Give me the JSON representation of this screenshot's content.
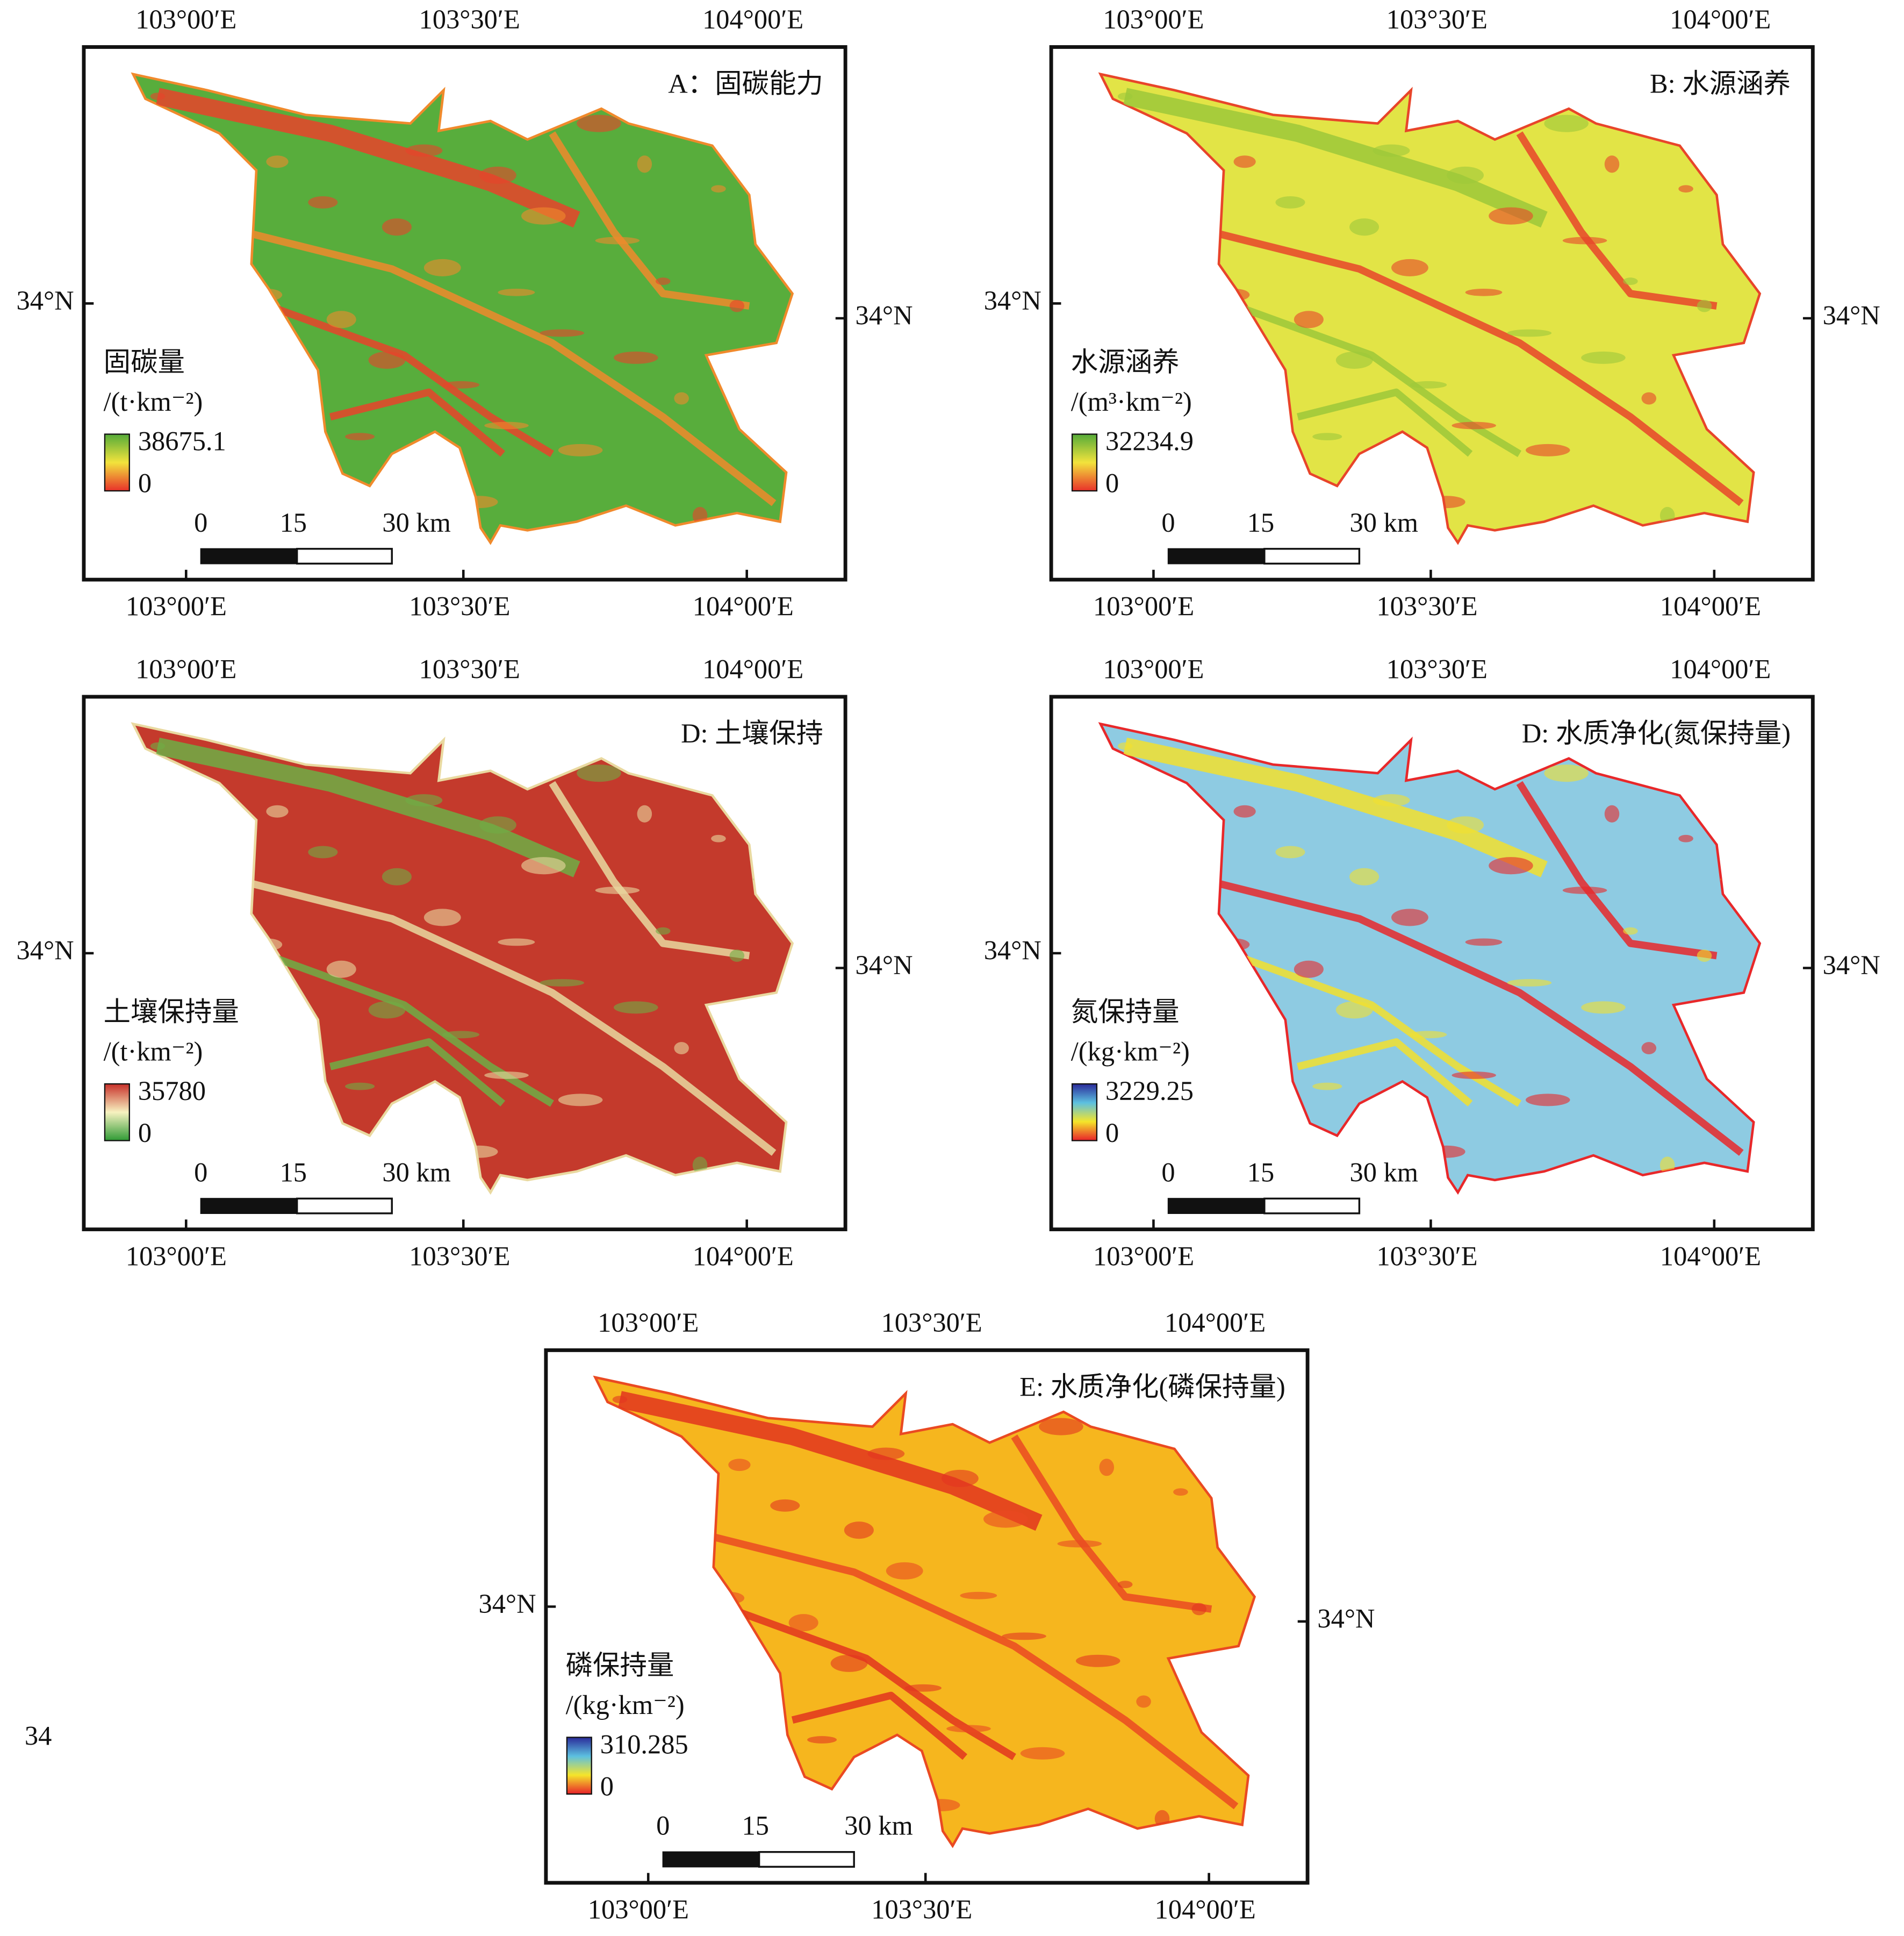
{
  "stray_label": "34",
  "panels": [
    {
      "title": "A：固碳能力",
      "legend_title": "固碳量",
      "legend_unit": "/(t·km⁻²)",
      "legend_max": 38675.1,
      "legend_min": 0,
      "lon_labels": [
        "103°00′E",
        "103°30′E",
        "104°00′E"
      ],
      "lat_label": "34°N",
      "scale_labels": [
        "0",
        "15",
        "30 km"
      ],
      "colors": [
        "#e8312a",
        "#f2e33c",
        "#55ab3a"
      ],
      "base": "#58ad3c",
      "accent": [
        "#e8432a",
        "#f08a2c"
      ]
    },
    {
      "title": "B: 水源涵养",
      "legend_title": "水源涵养",
      "legend_unit": "/(m³·km⁻²)",
      "legend_max": 32234.9,
      "legend_min": 0,
      "lon_labels": [
        "103°00′E",
        "103°30′E",
        "104°00′E"
      ],
      "lat_label": "34°N",
      "scale_labels": [
        "0",
        "15",
        "30 km"
      ],
      "colors": [
        "#e8312a",
        "#f2e33c",
        "#55ab3a"
      ],
      "base": "#e2e446",
      "accent": [
        "#9cc83a",
        "#e8452a"
      ]
    },
    {
      "title": "D: 土壤保持",
      "legend_title": "土壤保持量",
      "legend_unit": "/(t·km⁻²)",
      "legend_max": 35780,
      "legend_min": 0,
      "lon_labels": [
        "103°00′E",
        "103°30′E",
        "104°00′E"
      ],
      "lat_label": "34°N",
      "scale_labels": [
        "0",
        "15",
        "30 km"
      ],
      "colors": [
        "#2f9a35",
        "#f7f2c0",
        "#c8302a"
      ],
      "base": "#c43a2c",
      "accent": [
        "#6fae45",
        "#e9d9a0"
      ]
    },
    {
      "title": "D: 水质净化(氮保持量)",
      "legend_title": "氮保持量",
      "legend_unit": "/(kg·km⁻²)",
      "legend_max": 3229.25,
      "legend_min": 0,
      "lon_labels": [
        "103°00′E",
        "103°30′E",
        "104°00′E"
      ],
      "lat_label": "34°N",
      "scale_labels": [
        "0",
        "15",
        "30 km"
      ],
      "colors": [
        "#e8212a",
        "#f5e52a",
        "#5cc0e0",
        "#2a2a9a"
      ],
      "base": "#8ecbe2",
      "accent": [
        "#f2e12e",
        "#e8282a"
      ]
    },
    {
      "title": "E: 水质净化(磷保持量)",
      "legend_title": "磷保持量",
      "legend_unit": "/(kg·km⁻²)",
      "legend_max": 310.285,
      "legend_min": 0,
      "lon_labels": [
        "103°00′E",
        "103°30′E",
        "104°00′E"
      ],
      "lat_label": "34°N",
      "scale_labels": [
        "0",
        "15",
        "30 km"
      ],
      "colors": [
        "#e8212a",
        "#f5e52a",
        "#5cc0e0",
        "#2a2a9a"
      ],
      "base": "#f6b61e",
      "accent": [
        "#e2351f",
        "#ea4a22"
      ]
    }
  ]
}
